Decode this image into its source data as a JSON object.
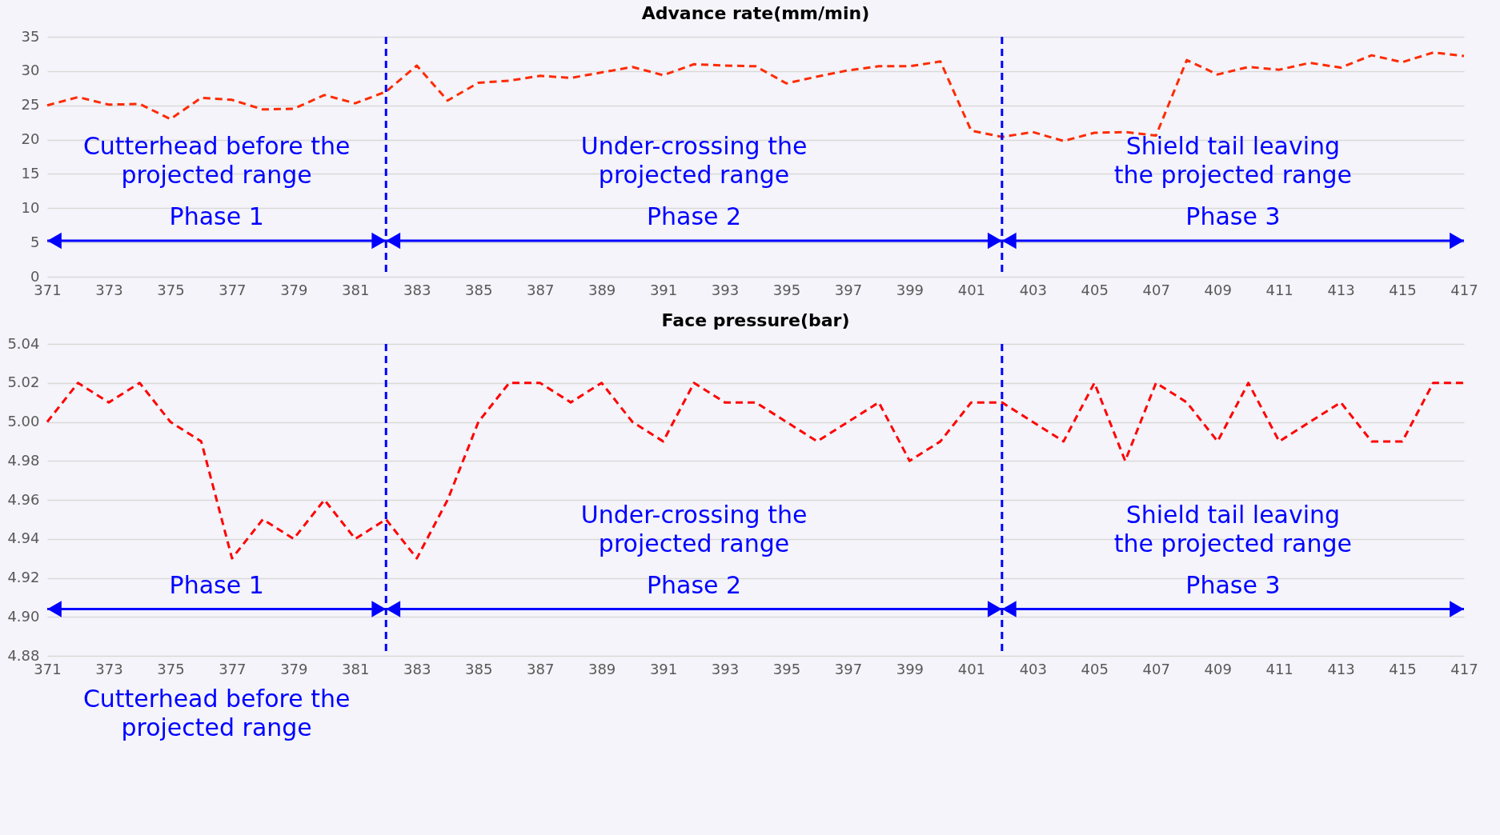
{
  "chart_data": [
    {
      "type": "line",
      "title": "Advance rate(mm/min)",
      "x": [
        371,
        372,
        373,
        374,
        375,
        376,
        377,
        378,
        379,
        380,
        381,
        382,
        383,
        384,
        385,
        386,
        387,
        388,
        389,
        390,
        391,
        392,
        393,
        394,
        395,
        396,
        397,
        398,
        399,
        400,
        401,
        402,
        403,
        404,
        405,
        406,
        407,
        408,
        409,
        410,
        411,
        412,
        413,
        414,
        415,
        416,
        417
      ],
      "series": [
        {
          "color": "#ff2a00",
          "values": [
            25,
            26.2,
            25.1,
            25.2,
            23,
            26.1,
            25.8,
            24.4,
            24.5,
            26.5,
            25.3,
            27,
            30.8,
            25.7,
            28.3,
            28.6,
            29.3,
            29,
            29.8,
            30.6,
            29.4,
            31,
            30.8,
            30.7,
            28.2,
            29.2,
            30.1,
            30.7,
            30.7,
            31.4,
            21.3,
            20.4,
            21.1,
            19.8,
            21,
            21.1,
            20.6,
            31.6,
            29.5,
            30.6,
            30.2,
            31.2,
            30.5,
            32.3,
            31.3,
            32.7,
            32.2
          ]
        }
      ],
      "xlim": [
        371,
        417
      ],
      "xticks": [
        371,
        373,
        375,
        377,
        379,
        381,
        383,
        385,
        387,
        389,
        391,
        393,
        395,
        397,
        399,
        401,
        403,
        405,
        407,
        409,
        411,
        413,
        415,
        417
      ],
      "ylim": [
        0,
        35
      ],
      "yticks": [
        0,
        5,
        10,
        15,
        20,
        25,
        30,
        35
      ],
      "grid": "y",
      "line_style": "dashed",
      "ref_lines": [
        {
          "axis": "x",
          "value": 382,
          "color": "#0000ff",
          "line_style": "dashed"
        },
        {
          "axis": "x",
          "value": 402,
          "color": "#0000ff",
          "line_style": "dashed"
        }
      ],
      "annotations": [
        "Cutterhead before the\nprojected range",
        "Phase 1",
        "Under-crossing the\nprojected range",
        "Phase 2",
        "Shield tail leaving\nthe projected range",
        "Phase 3"
      ]
    },
    {
      "type": "line",
      "title": "Face pressure(bar)",
      "x": [
        371,
        372,
        373,
        374,
        375,
        376,
        377,
        378,
        379,
        380,
        381,
        382,
        383,
        384,
        385,
        386,
        387,
        388,
        389,
        390,
        391,
        392,
        393,
        394,
        395,
        396,
        397,
        398,
        399,
        400,
        401,
        402,
        403,
        404,
        405,
        406,
        407,
        408,
        409,
        410,
        411,
        412,
        413,
        414,
        415,
        416,
        417
      ],
      "series": [
        {
          "color": "#ff0000",
          "values": [
            5.0,
            5.02,
            5.01,
            5.02,
            5.0,
            4.99,
            4.93,
            4.95,
            4.94,
            4.96,
            4.94,
            4.95,
            4.93,
            4.96,
            5.0,
            5.02,
            5.02,
            5.01,
            5.02,
            5.0,
            4.99,
            5.02,
            5.01,
            5.01,
            5.0,
            4.99,
            5.0,
            5.01,
            4.98,
            4.99,
            5.01,
            5.01,
            5.0,
            4.99,
            5.02,
            4.98,
            5.02,
            5.01,
            4.99,
            5.02,
            4.99,
            5.0,
            5.01,
            4.99,
            4.99,
            5.02,
            5.02
          ]
        }
      ],
      "xlim": [
        371,
        417
      ],
      "xticks": [
        371,
        373,
        375,
        377,
        379,
        381,
        383,
        385,
        387,
        389,
        391,
        393,
        395,
        397,
        399,
        401,
        403,
        405,
        407,
        409,
        411,
        413,
        415,
        417
      ],
      "ylim": [
        4.88,
        5.04
      ],
      "yticks": [
        4.88,
        {
          "value": 4.9,
          "label": "4.90"
        },
        4.92,
        4.94,
        4.96,
        4.98,
        {
          "value": 5,
          "label": "5.00"
        },
        5.02,
        5.04
      ],
      "grid": "y",
      "line_style": "dashed",
      "ref_lines": [
        {
          "axis": "x",
          "value": 382,
          "color": "#0000ff",
          "line_style": "dashed"
        },
        {
          "axis": "x",
          "value": 402,
          "color": "#0000ff",
          "line_style": "dashed"
        }
      ],
      "annotations": [
        "Cutterhead before the\nprojected range",
        "Phase 1",
        "Under-crossing the\nprojected range",
        "Phase 2",
        "Shield tail leaving\nthe projected range",
        "Phase 3"
      ]
    }
  ]
}
